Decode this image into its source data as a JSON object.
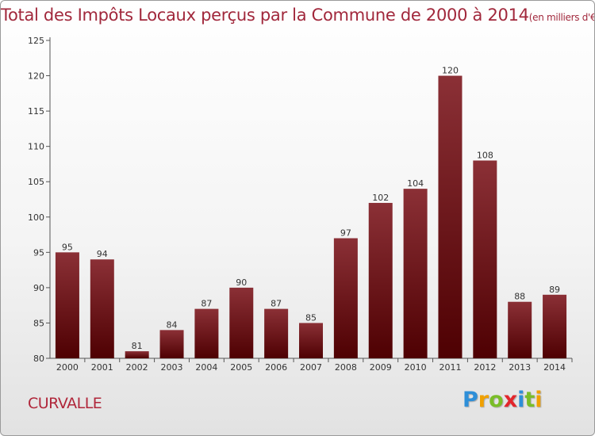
{
  "title": "Total des Impôts Locaux perçus par la Commune de 2000 à 2014",
  "title_unit": "(en milliers d'€)",
  "commune": "CURVALLE",
  "brand": {
    "letters": [
      "P",
      "r",
      "o",
      "x",
      "i",
      "t",
      "i"
    ],
    "colors": [
      "#2e8fd8",
      "#f0a000",
      "#7abd28",
      "#e2262c",
      "#2e8fd8",
      "#7abd28",
      "#f0a000"
    ]
  },
  "colors": {
    "bar_top": "#8b3036",
    "bar_bottom": "#4e0002",
    "title": "#a1283c"
  },
  "chart_data": {
    "type": "bar",
    "categories": [
      "2000",
      "2001",
      "2002",
      "2003",
      "2004",
      "2005",
      "2006",
      "2007",
      "2008",
      "2009",
      "2010",
      "2011",
      "2012",
      "2013",
      "2014"
    ],
    "values": [
      95,
      94,
      81,
      84,
      87,
      90,
      87,
      85,
      97,
      102,
      104,
      120,
      108,
      88,
      89
    ],
    "ylim": [
      80,
      125
    ],
    "yticks": [
      80,
      85,
      90,
      95,
      100,
      105,
      110,
      115,
      120,
      125
    ],
    "grid": false,
    "xlabel": "",
    "ylabel": ""
  }
}
